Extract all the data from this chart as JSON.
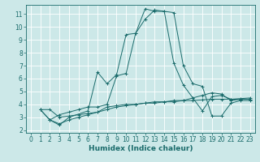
{
  "bg_color": "#cce8e8",
  "line_color": "#1a6b6b",
  "grid_color": "#ffffff",
  "xlabel": "Humidex (Indice chaleur)",
  "xlim": [
    -0.5,
    23.5
  ],
  "ylim": [
    1.8,
    11.7
  ],
  "yticks": [
    2,
    3,
    4,
    5,
    6,
    7,
    8,
    9,
    10,
    11
  ],
  "xticks": [
    0,
    1,
    2,
    3,
    4,
    5,
    6,
    7,
    8,
    9,
    10,
    11,
    12,
    13,
    14,
    15,
    16,
    17,
    18,
    19,
    20,
    21,
    22,
    23
  ],
  "lines": [
    {
      "x": [
        1,
        2,
        3,
        4,
        5,
        6,
        7,
        8,
        9,
        10,
        11,
        12,
        13,
        14,
        15,
        16,
        17,
        18,
        19,
        20,
        21,
        22,
        23
      ],
      "y": [
        3.6,
        3.6,
        3.0,
        3.1,
        3.2,
        3.3,
        3.4,
        3.8,
        3.9,
        4.0,
        4.0,
        4.1,
        4.1,
        4.2,
        4.2,
        4.3,
        4.3,
        4.35,
        4.4,
        4.4,
        4.4,
        4.45,
        4.5
      ]
    },
    {
      "x": [
        1,
        2,
        3,
        4,
        5,
        6,
        7,
        8,
        9,
        10,
        11,
        12,
        13,
        14,
        15,
        16,
        17,
        18,
        19,
        20,
        21,
        22,
        23
      ],
      "y": [
        3.6,
        2.8,
        2.5,
        2.8,
        3.0,
        3.2,
        3.4,
        3.6,
        3.8,
        3.9,
        4.0,
        4.1,
        4.2,
        4.2,
        4.3,
        4.3,
        4.5,
        4.7,
        4.9,
        4.8,
        4.3,
        4.4,
        4.4
      ]
    },
    {
      "x": [
        1,
        2,
        3,
        4,
        6,
        7,
        8,
        9,
        10,
        11,
        12,
        13,
        14,
        15,
        16,
        17,
        18,
        19,
        20,
        21,
        22,
        23
      ],
      "y": [
        3.6,
        2.8,
        2.4,
        3.0,
        3.5,
        6.5,
        5.6,
        6.3,
        9.4,
        9.5,
        10.6,
        11.3,
        11.2,
        11.1,
        7.0,
        5.6,
        5.4,
        3.1,
        3.1,
        4.1,
        4.3,
        4.3
      ]
    },
    {
      "x": [
        2,
        3,
        4,
        5,
        6,
        7,
        8,
        9,
        10,
        11,
        12,
        13,
        14,
        15,
        16,
        17,
        18,
        19,
        20,
        21,
        22,
        23
      ],
      "y": [
        2.8,
        3.2,
        3.4,
        3.6,
        3.8,
        3.8,
        4.0,
        6.2,
        6.4,
        9.5,
        11.4,
        11.2,
        11.2,
        7.2,
        5.5,
        4.5,
        3.5,
        4.6,
        4.7,
        4.4,
        4.4,
        4.4
      ]
    }
  ],
  "marker": "+",
  "tick_fontsize": 5.5,
  "xlabel_fontsize": 6.5,
  "lw": 0.7,
  "markersize": 2.5
}
